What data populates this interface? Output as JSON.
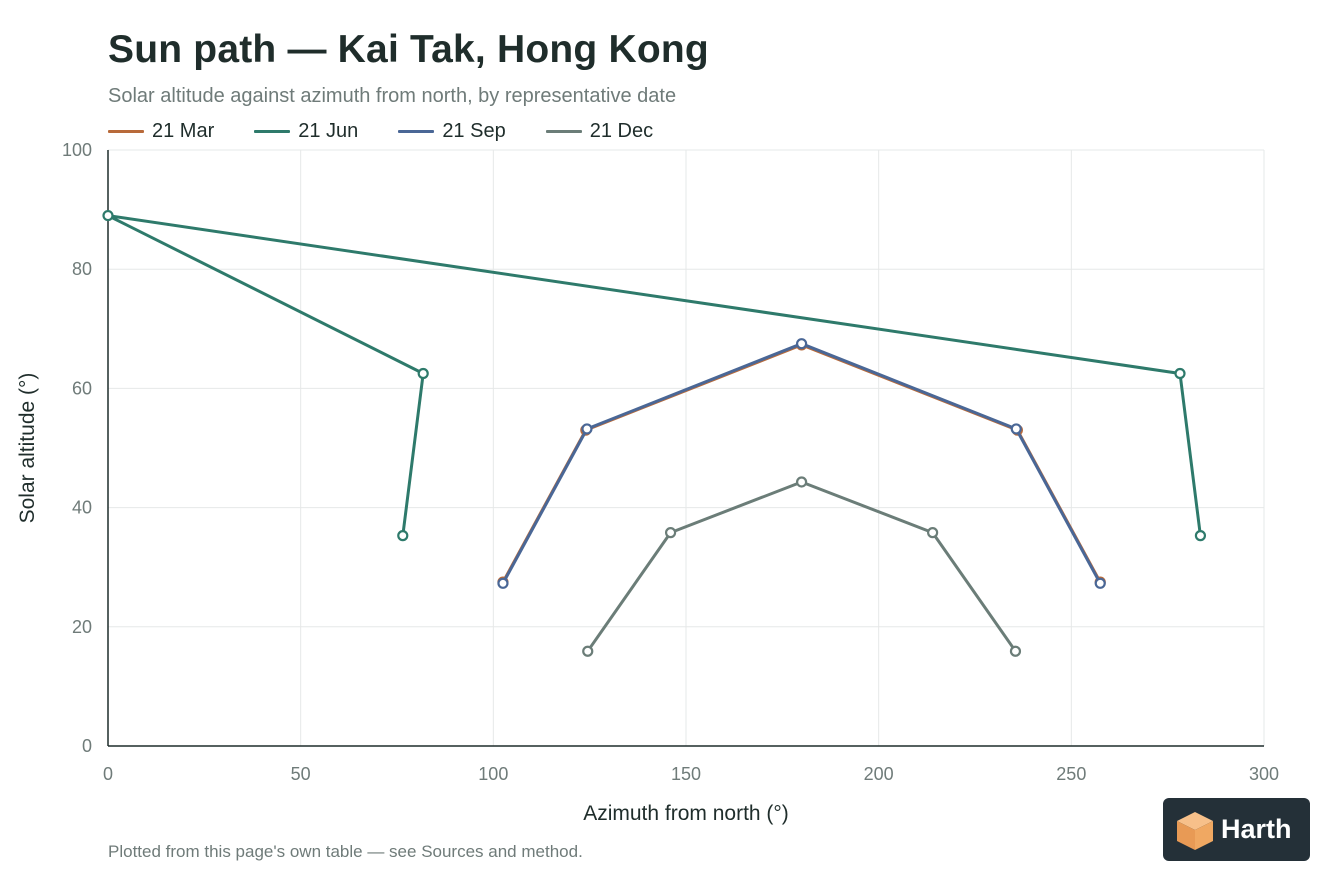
{
  "header": {
    "title": "Sun path — Kai Tak, Hong Kong",
    "subtitle": "Solar altitude against azimuth from north, by representative date"
  },
  "footer": {
    "note": "Plotted from this page's own table — see Sources and method."
  },
  "logo": {
    "text": "Harth",
    "icon": "cube-logo-icon",
    "accent": "#f0a862"
  },
  "colors": {
    "grid": "#e6e8e8",
    "axis": "#1f2d2b",
    "marker_fill": "#ffffff"
  },
  "chart_data": {
    "type": "line",
    "title": "Sun path — Kai Tak, Hong Kong",
    "subtitle": "Solar altitude against azimuth from north, by representative date",
    "xlabel": "Azimuth from north (°)",
    "ylabel": "Solar altitude (°)",
    "xlim": [
      0,
      300
    ],
    "ylim": [
      0,
      100
    ],
    "xticks": [
      0,
      50,
      100,
      150,
      200,
      250,
      300
    ],
    "yticks": [
      0,
      20,
      40,
      60,
      80,
      100
    ],
    "grid": true,
    "legend": "top-left",
    "series": [
      {
        "name": "21 Mar",
        "color": "#b86a3a",
        "points": [
          [
            102.5,
            27.5
          ],
          [
            124,
            53
          ],
          [
            180,
            67.3
          ],
          [
            236,
            53
          ],
          [
            257.5,
            27.5
          ]
        ]
      },
      {
        "name": "21 Jun",
        "color": "#2e7a6b",
        "points": [
          [
            76.5,
            35.3
          ],
          [
            81.8,
            62.5
          ],
          [
            0,
            89
          ],
          [
            278.2,
            62.5
          ],
          [
            283.5,
            35.3
          ]
        ]
      },
      {
        "name": "21 Sep",
        "color": "#4a6796",
        "points": [
          [
            102.5,
            27.3
          ],
          [
            124.3,
            53.2
          ],
          [
            180,
            67.5
          ],
          [
            235.7,
            53.2
          ],
          [
            257.5,
            27.3
          ]
        ]
      },
      {
        "name": "21 Dec",
        "color": "#6b7d78",
        "points": [
          [
            124.5,
            15.9
          ],
          [
            146,
            35.8
          ],
          [
            180,
            44.3
          ],
          [
            214,
            35.8
          ],
          [
            235.5,
            15.9
          ]
        ]
      }
    ]
  }
}
